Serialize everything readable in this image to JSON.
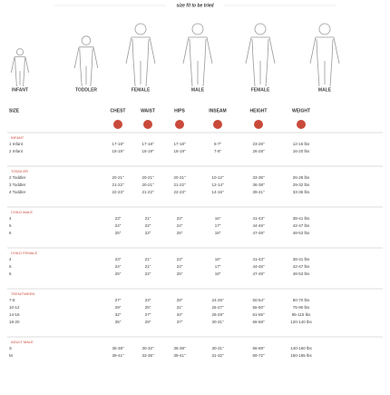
{
  "header": {
    "title": "size fit to be tried"
  },
  "figures": [
    "INFANT",
    "TODDLER",
    "FEMALE",
    "MALE",
    "FEMALE",
    "MALE"
  ],
  "table": {
    "columns": [
      "SIZE",
      "CHEST",
      "WAIST",
      "HIPS",
      "INSEAM",
      "HEIGHT",
      "WEIGHT"
    ],
    "sections": [
      {
        "title": "INFANT",
        "rows": [
          [
            "1 Infant",
            "17-18\"",
            "17-18\"",
            "17-18\"",
            "6-7\"",
            "23-26\"",
            "12-16 lbs"
          ],
          [
            "2 Infant",
            "18-19\"",
            "18-19\"",
            "18-19\"",
            "7-8\"",
            "26-28\"",
            "16-20 lbs"
          ]
        ]
      },
      {
        "title": "TODDLER",
        "rows": [
          [
            "2 Toddler",
            "20-21\"",
            "20-21\"",
            "20-21\"",
            "10-12\"",
            "33-35\"",
            "26-28 lbs"
          ],
          [
            "3 Toddler",
            "21-22\"",
            "20-21\"",
            "21-22\"",
            "12-14\"",
            "36-38\"",
            "29-32 lbs"
          ],
          [
            "4 Toddler",
            "22-23\"",
            "21-22\"",
            "22-23\"",
            "14-16\"",
            "39-41\"",
            "33-36 lbs"
          ]
        ]
      },
      {
        "title": "CHILD MALE",
        "rows": [
          [
            "4",
            "23\"",
            "21\"",
            "23\"",
            "16\"",
            "41-43\"",
            "38-41 lbs"
          ],
          [
            "5",
            "24\"",
            "22\"",
            "24\"",
            "17\"",
            "44-46\"",
            "42-47 lbs"
          ],
          [
            "6",
            "25\"",
            "22\"",
            "25\"",
            "18\"",
            "47-48\"",
            "48-53 lbs"
          ]
        ]
      },
      {
        "title": "CHILD FEMALE",
        "rows": [
          [
            "4",
            "23\"",
            "21\"",
            "23\"",
            "16\"",
            "41-43\"",
            "38-41 lbs"
          ],
          [
            "5",
            "24\"",
            "21\"",
            "24\"",
            "17\"",
            "44-46\"",
            "42-47 lbs"
          ],
          [
            "6",
            "25\"",
            "22\"",
            "25\"",
            "18\"",
            "47-48\"",
            "48-53 lbs"
          ]
        ]
      },
      {
        "title": "TEEN/TWEEN",
        "rows": [
          [
            "7-8",
            "27\"",
            "23\"",
            "28\"",
            "24-25\"",
            "50-54\"",
            "60-70 lbs"
          ],
          [
            "10-12",
            "29\"",
            "25\"",
            "31\"",
            "26-27\"",
            "56-60\"",
            "75-90 lbs"
          ],
          [
            "14-16",
            "32\"",
            "27\"",
            "34\"",
            "28-29\"",
            "61-65\"",
            "95-115 lbs"
          ],
          [
            "18-20",
            "35\"",
            "29\"",
            "37\"",
            "30-31\"",
            "66-68\"",
            "120-140 lbs"
          ]
        ]
      },
      {
        "title": "ADULT MALE",
        "rows": [
          [
            "S",
            "36-38\"",
            "30-32\"",
            "36-38\"",
            "30-31\"",
            "66-69\"",
            "140-160 lbs"
          ],
          [
            "M",
            "39-41\"",
            "33-35\"",
            "39-41\"",
            "31-32\"",
            "69-72\"",
            "160-185 lbs"
          ]
        ]
      }
    ]
  }
}
